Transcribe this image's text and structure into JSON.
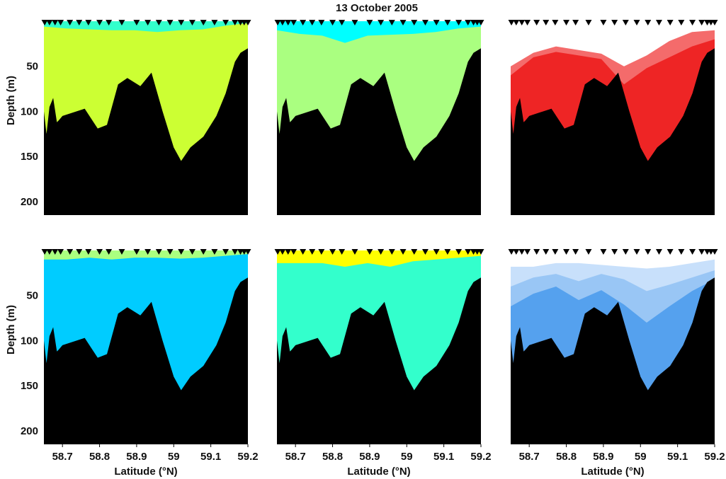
{
  "title": "13 October 2005",
  "chart_data": {
    "type": "heatmap",
    "layout": "2x3 panels",
    "xlabel": "Latitude (°N)",
    "ylabel": "Depth (m)",
    "xlim": [
      58.65,
      59.2
    ],
    "ylim": [
      215,
      0
    ],
    "y_reversed": true,
    "xticks": [
      58.7,
      58.8,
      58.9,
      59,
      59.1,
      59.2
    ],
    "xtick_labels": [
      "58.7",
      "58.8",
      "58.9",
      "59",
      "59.1",
      "59.2"
    ],
    "yticks": [
      50,
      100,
      150,
      200
    ],
    "ytick_labels": [
      "50",
      "100",
      "150",
      "200"
    ],
    "stations": [
      58.652,
      58.665,
      58.68,
      58.695,
      58.72,
      58.745,
      58.77,
      58.8,
      58.825,
      58.86,
      58.9,
      58.93,
      58.96,
      58.99,
      59.02,
      59.05,
      59.08,
      59.11,
      59.14,
      59.165,
      59.18,
      59.19,
      59.2
    ],
    "bathymetry": {
      "lat": [
        58.65,
        58.657,
        58.665,
        58.675,
        58.685,
        58.69,
        58.7,
        58.76,
        58.795,
        58.82,
        58.85,
        58.875,
        58.91,
        58.94,
        58.97,
        59.0,
        59.02,
        59.045,
        59.08,
        59.115,
        59.14,
        59.165,
        59.18,
        59.2
      ],
      "depth": [
        100,
        125,
        95,
        85,
        112,
        110,
        105,
        97,
        119,
        115,
        70,
        63,
        72,
        57,
        100,
        140,
        155,
        140,
        128,
        105,
        80,
        45,
        35,
        30
      ]
    },
    "colorbar_shown": false,
    "panels": [
      {
        "row": 1,
        "col": 1,
        "colormap": "jet-like",
        "bands": [
          {
            "level": 0.55,
            "color": "#33ffcc",
            "top": [
              100,
              70,
              60,
              62,
              62,
              65,
              72,
              55,
              38,
              32
            ]
          },
          {
            "level": 0.63,
            "color": "#80ffaa",
            "top": [
              40,
              30,
              26,
              28,
              30,
              32,
              30,
              22,
              12,
              8
            ]
          },
          {
            "level": 0.7,
            "color": "#aaff80",
            "top": [
              18,
              16,
              14,
              16,
              18,
              20,
              18,
              14,
              6,
              3
            ]
          },
          {
            "level": 0.78,
            "color": "#ccff33",
            "top": [
              6,
              8,
              9,
              10,
              10,
              12,
              10,
              9,
              5,
              2
            ]
          }
        ]
      },
      {
        "row": 1,
        "col": 2,
        "colormap": "jet-like",
        "bands": [
          {
            "level": 0.48,
            "color": "#00ffff",
            "top": [
              95,
              70,
              72,
              78,
              72,
              65,
              75,
              58,
              45,
              36
            ]
          },
          {
            "level": 0.55,
            "color": "#33ffcc",
            "top": [
              62,
              52,
              48,
              58,
              48,
              42,
              48,
              38,
              30,
              22
            ]
          },
          {
            "level": 0.63,
            "color": "#80ffaa",
            "top": [
              26,
              24,
              28,
              38,
              28,
              26,
              26,
              22,
              16,
              12
            ]
          },
          {
            "level": 0.7,
            "color": "#aaff80",
            "top": [
              10,
              14,
              16,
              24,
              16,
              15,
              14,
              12,
              8,
              6
            ]
          }
        ]
      },
      {
        "row": 1,
        "col": 3,
        "colormap": "red-white-blue",
        "bands": [
          {
            "level": 0.5,
            "color": "#fde0e0",
            "top": [
              82,
              60,
              52,
              55,
              60,
              70,
              62,
              45,
              30,
              25
            ]
          },
          {
            "level": 0.6,
            "color": "#f9a5a5",
            "top": [
              65,
              45,
              38,
              42,
              46,
              58,
              48,
              32,
              20,
              15
            ]
          },
          {
            "level": 0.7,
            "color": "#f46b6b",
            "top": [
              50,
              35,
              28,
              32,
              36,
              50,
              38,
              22,
              12,
              10
            ]
          },
          {
            "level": 0.8,
            "color": "#ee2525",
            "top": [
              60,
              40,
              34,
              38,
              42,
              70,
              52,
              40,
              28,
              20
            ]
          }
        ]
      },
      {
        "row": 2,
        "col": 1,
        "colormap": "jet-like",
        "bands": [
          {
            "level": 0.7,
            "color": "#aaff80",
            "top": [
              75,
              70,
              70,
              78,
              72,
              75,
              85,
              70,
              55,
              45
            ]
          },
          {
            "level": 0.63,
            "color": "#80ffaa",
            "top": [
              45,
              42,
              40,
              46,
              42,
              40,
              50,
              42,
              30,
              24
            ]
          },
          {
            "level": 0.55,
            "color": "#33ffcc",
            "top": [
              25,
              22,
              22,
              26,
              24,
              22,
              26,
              22,
              16,
              12
            ]
          },
          {
            "level": 0.48,
            "color": "#00ccff",
            "top": [
              10,
              10,
              8,
              10,
              8,
              8,
              9,
              8,
              6,
              4
            ]
          }
        ]
      },
      {
        "row": 2,
        "col": 2,
        "colormap": "jet-like",
        "bands": [
          {
            "level": 0.85,
            "color": "#ffff00",
            "top": [
              110,
              78,
              72,
              90,
              76,
              72,
              85,
              75,
              60,
              45
            ]
          },
          {
            "level": 0.78,
            "color": "#ccff33",
            "top": [
              60,
              55,
              50,
              60,
              52,
              50,
              55,
              45,
              36,
              28
            ]
          },
          {
            "level": 0.7,
            "color": "#aaff80",
            "top": [
              34,
              30,
              28,
              34,
              30,
              28,
              28,
              22,
              18,
              14
            ]
          },
          {
            "level": 0.55,
            "color": "#33ffcc",
            "top": [
              14,
              14,
              14,
              18,
              14,
              18,
              12,
              10,
              8,
              6
            ]
          }
        ]
      },
      {
        "row": 2,
        "col": 3,
        "colormap": "red-white-blue",
        "bands": [
          {
            "level": 0.45,
            "color": "#c8e0fb",
            "top": [
              18,
              18,
              14,
              14,
              16,
              18,
              20,
              18,
              14,
              10
            ]
          },
          {
            "level": 0.35,
            "color": "#99c6f5",
            "top": [
              40,
              30,
              26,
              34,
              26,
              32,
              45,
              38,
              30,
              22
            ]
          },
          {
            "level": 0.25,
            "color": "#55a1ee",
            "top": [
              62,
              48,
              40,
              55,
              44,
              60,
              80,
              62,
              45,
              32
            ]
          }
        ]
      }
    ]
  }
}
